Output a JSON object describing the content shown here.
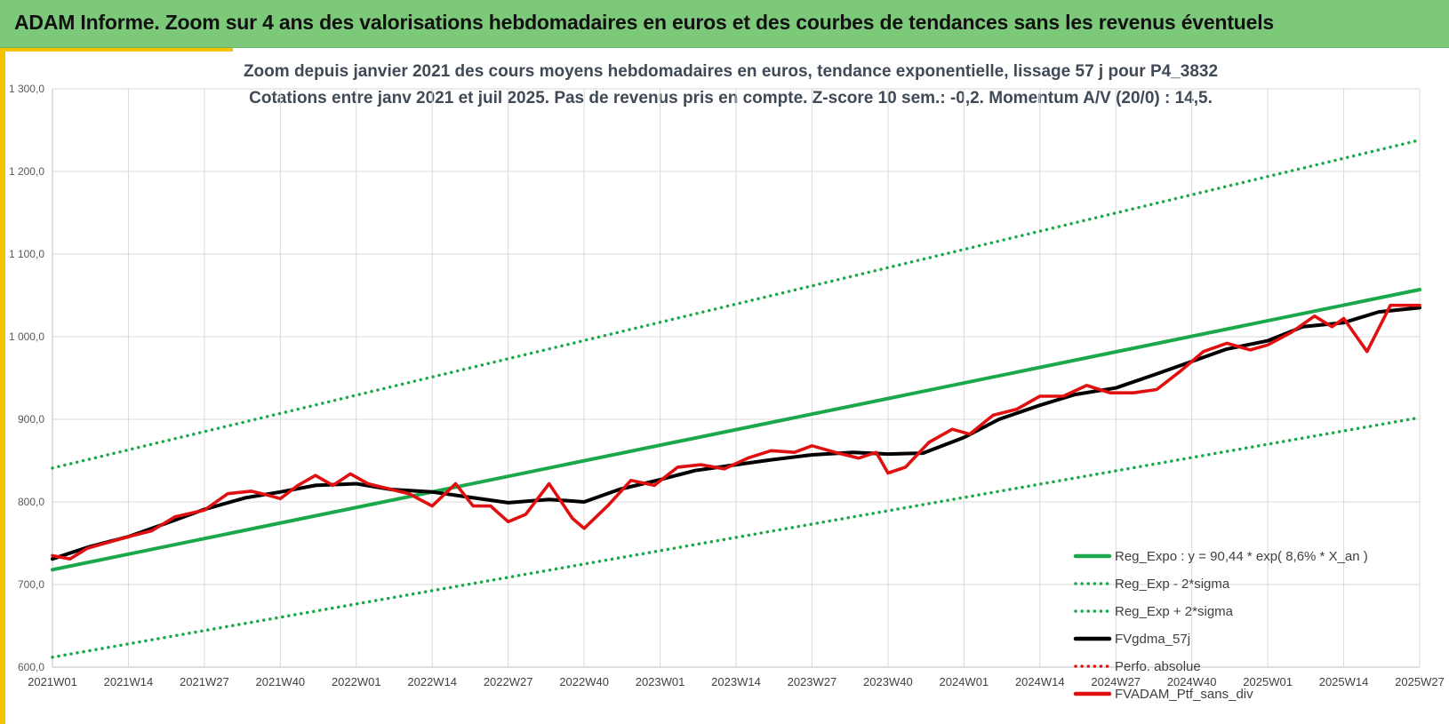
{
  "header": {
    "title": "ADAM Informe. Zoom sur 4 ans des valorisations hebdomadaires en euros et des courbes de tendances sans les revenus éventuels"
  },
  "colors": {
    "header_bg": "#7dc97a",
    "accent": "#f5c200",
    "trend_green": "#1aa84a",
    "smooth_black": "#000000",
    "portfolio_red": "#e01010"
  },
  "chart_data": {
    "type": "line",
    "title": "Zoom depuis janvier 2021 des cours moyens hebdomadaires  en euros, tendance exponentielle, lissage 57 j pour P4_3832",
    "subtitle": "Cotations entre janv 2021 et juil 2025. Pas de revenus pris en compte. Z-score 10 sem.: -0,2. Momentum A/V (20/0) : 14,5.",
    "xlabel": "",
    "ylabel": "",
    "ylim": [
      600,
      1300
    ],
    "y_ticks": [
      600,
      700,
      800,
      900,
      1000,
      1100,
      1200,
      1300
    ],
    "y_tick_labels": [
      "600,0",
      "700,0",
      "800,0",
      "900,0",
      "1 000,0",
      "1 100,0",
      "1 200,0",
      "1 300,0"
    ],
    "x_ticks": [
      "2021W01",
      "2021W14",
      "2021W27",
      "2021W40",
      "2022W01",
      "2022W14",
      "2022W27",
      "2022W40",
      "2023W01",
      "2023W14",
      "2023W27",
      "2023W40",
      "2024W01",
      "2024W14",
      "2024W27",
      "2024W40",
      "2025W01",
      "2025W14",
      "2025W27"
    ],
    "grid": true,
    "legend_position": "bottom-right",
    "series": [
      {
        "name": "Reg_Expo : y = 90,44 * exp( 8,6% *  X_an )",
        "style": "solid-thick",
        "color": "#1aa84a",
        "x": [
          "2021W01",
          "2025W27"
        ],
        "values": [
          718,
          1057
        ]
      },
      {
        "name": "Reg_Exp - 2*sigma",
        "style": "dotted",
        "color": "#1aa84a",
        "x": [
          "2021W01",
          "2025W27"
        ],
        "values": [
          612,
          902
        ]
      },
      {
        "name": "Reg_Exp + 2*sigma",
        "style": "dotted",
        "color": "#1aa84a",
        "x": [
          "2021W01",
          "2025W27"
        ],
        "values": [
          841,
          1238
        ]
      },
      {
        "name": "FVgdma_57j",
        "style": "solid-thick",
        "color": "#000000",
        "x": [
          "2021W01",
          "2021W07",
          "2021W14",
          "2021W20",
          "2021W27",
          "2021W34",
          "2021W40",
          "2021W46",
          "2022W01",
          "2022W07",
          "2022W14",
          "2022W20",
          "2022W27",
          "2022W34",
          "2022W40",
          "2022W46",
          "2023W01",
          "2023W07",
          "2023W14",
          "2023W20",
          "2023W27",
          "2023W34",
          "2023W40",
          "2023W46",
          "2024W01",
          "2024W07",
          "2024W14",
          "2024W20",
          "2024W27",
          "2024W34",
          "2024W40",
          "2024W46",
          "2025W01",
          "2025W07",
          "2025W14",
          "2025W20",
          "2025W27"
        ],
        "values": [
          731,
          745,
          758,
          773,
          791,
          805,
          812,
          820,
          822,
          815,
          812,
          806,
          799,
          803,
          800,
          815,
          827,
          838,
          845,
          851,
          857,
          860,
          858,
          859,
          878,
          900,
          917,
          930,
          938,
          955,
          970,
          985,
          995,
          1012,
          1017,
          1030,
          1035
        ]
      },
      {
        "name": "Perfo. absolue",
        "style": "dotted",
        "color": "#e01010",
        "x": [],
        "values": []
      },
      {
        "name": "FVADAM_Ptf_sans_div",
        "style": "solid-thick",
        "color": "#e01010",
        "x": [
          "2021W01",
          "2021W04",
          "2021W07",
          "2021W10",
          "2021W14",
          "2021W18",
          "2021W22",
          "2021W27",
          "2021W31",
          "2021W35",
          "2021W38",
          "2021W40",
          "2021W43",
          "2021W46",
          "2021W49",
          "2021W52",
          "2022W03",
          "2022W07",
          "2022W10",
          "2022W14",
          "2022W18",
          "2022W21",
          "2022W24",
          "2022W27",
          "2022W30",
          "2022W34",
          "2022W38",
          "2022W40",
          "2022W44",
          "2022W48",
          "2022W52",
          "2023W04",
          "2023W08",
          "2023W12",
          "2023W16",
          "2023W20",
          "2023W24",
          "2023W27",
          "2023W31",
          "2023W35",
          "2023W38",
          "2023W40",
          "2023W43",
          "2023W47",
          "2023W51",
          "2024W02",
          "2024W06",
          "2024W10",
          "2024W14",
          "2024W18",
          "2024W22",
          "2024W26",
          "2024W30",
          "2024W34",
          "2024W38",
          "2024W42",
          "2024W46",
          "2024W50",
          "2025W01",
          "2025W05",
          "2025W09",
          "2025W12",
          "2025W14",
          "2025W18",
          "2025W22",
          "2025W27"
        ],
        "values": [
          735,
          731,
          744,
          750,
          758,
          765,
          782,
          790,
          810,
          813,
          808,
          804,
          820,
          832,
          820,
          834,
          822,
          815,
          810,
          795,
          822,
          795,
          795,
          776,
          785,
          822,
          780,
          768,
          795,
          826,
          820,
          842,
          845,
          840,
          853,
          862,
          860,
          868,
          860,
          853,
          860,
          835,
          842,
          872,
          888,
          882,
          905,
          912,
          928,
          928,
          941,
          932,
          932,
          936,
          958,
          982,
          992,
          984,
          990,
          1005,
          1025,
          1012,
          1022,
          982,
          1038,
          1038
        ]
      }
    ]
  }
}
